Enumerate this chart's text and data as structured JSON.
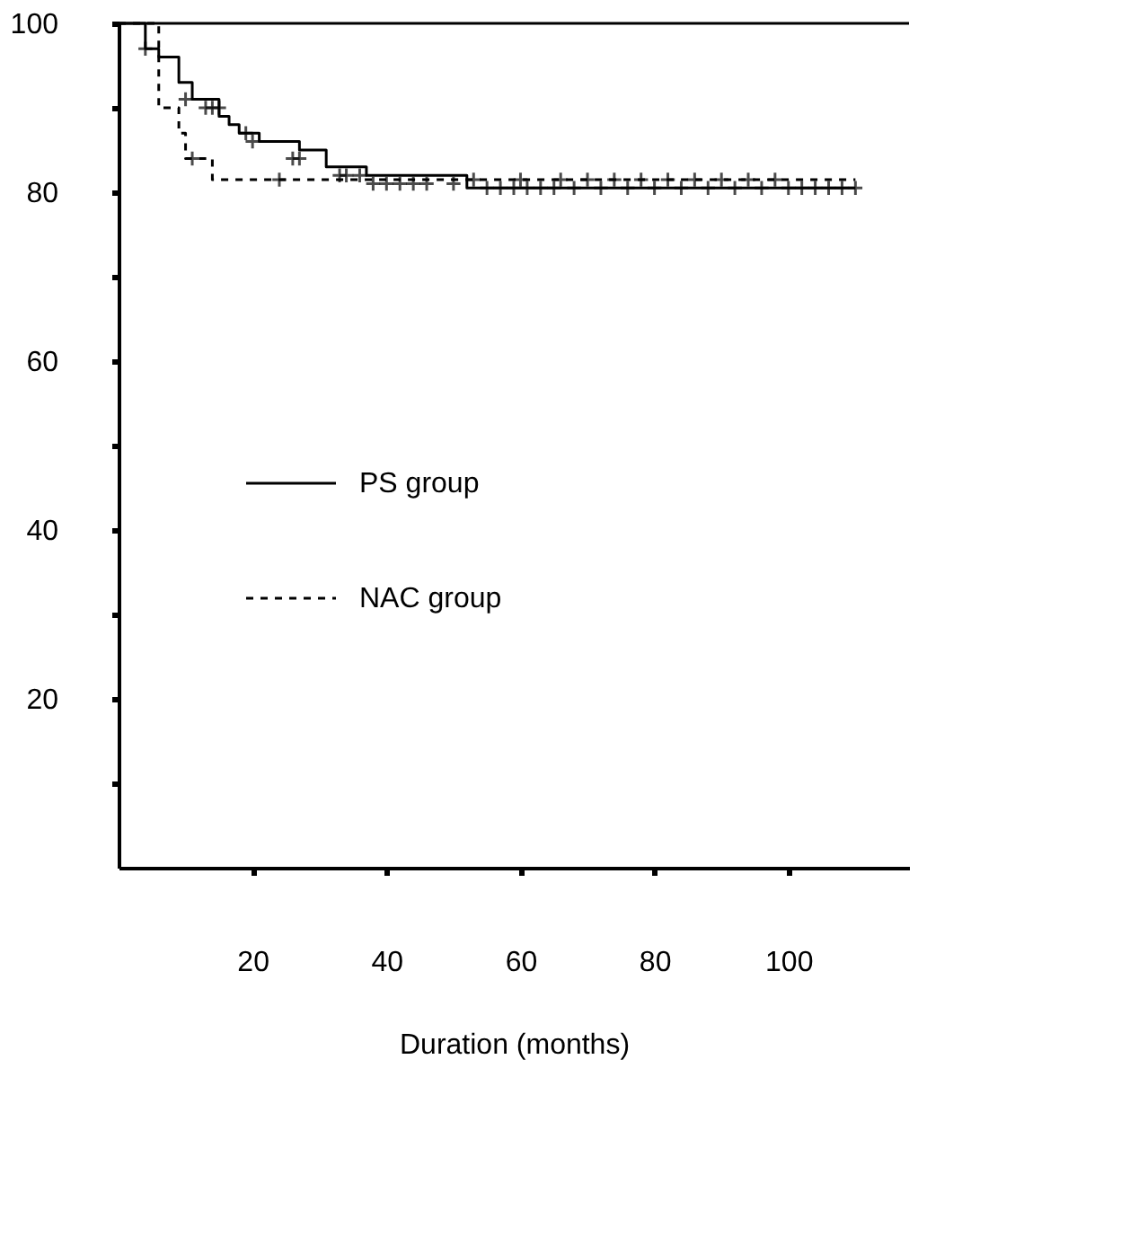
{
  "chart_data": {
    "type": "step",
    "xlabel": "Duration (months)",
    "xlim": [
      0,
      118
    ],
    "xticks": [
      20,
      40,
      60,
      80,
      100
    ],
    "ylim": [
      0,
      100
    ],
    "yticks": [
      {
        "value": 10,
        "label": null
      },
      20,
      {
        "value": 30,
        "label": null
      },
      40,
      {
        "value": 50,
        "label": null
      },
      60,
      {
        "value": 70,
        "label": null
      },
      80,
      {
        "value": 90,
        "label": null
      },
      100
    ],
    "grid": false,
    "legend": "left",
    "ref_lines": [
      {
        "axis": "y",
        "value": 100
      }
    ],
    "series": [
      {
        "name": "PS group",
        "color": "#000000",
        "line_style": "solid",
        "x": [
          0,
          4,
          6,
          9,
          11,
          15,
          16.5,
          18,
          21,
          27,
          31,
          37,
          52,
          110
        ],
        "values": [
          100,
          97,
          96,
          93,
          91,
          89,
          88,
          87,
          86,
          85,
          83,
          82,
          80.5,
          80.5
        ]
      },
      {
        "name": "NAC group",
        "color": "#000000",
        "line_style": "dashed",
        "x": [
          0,
          6,
          9,
          10,
          14,
          110
        ],
        "values": [
          100,
          90,
          87,
          84,
          81.5,
          81.5
        ]
      },
      {
        "type": "scatter",
        "marker": "cross",
        "color": "#000000",
        "x": [
          4,
          10,
          13,
          14,
          15,
          19,
          20,
          26,
          27,
          33,
          34,
          36,
          38,
          40,
          42,
          44,
          46,
          50,
          55,
          57,
          59,
          61,
          63,
          65,
          68,
          72,
          76,
          80,
          84,
          88,
          92,
          96,
          100,
          102,
          104,
          106,
          108,
          110
        ],
        "values": [
          97,
          91,
          90,
          90,
          90,
          87,
          86,
          84,
          84,
          82,
          82,
          82,
          81,
          81,
          81,
          81,
          81,
          81,
          80.5,
          80.5,
          80.5,
          80.5,
          80.5,
          80.5,
          80.5,
          80.5,
          80.5,
          80.5,
          80.5,
          80.5,
          80.5,
          80.5,
          80.5,
          80.5,
          80.5,
          80.5,
          80.5,
          80.5
        ]
      },
      {
        "type": "scatter",
        "marker": "cross",
        "color": "#000000",
        "x": [
          11,
          24,
          53,
          60,
          66,
          70,
          74,
          78,
          82,
          86,
          90,
          94,
          98
        ],
        "values": [
          84,
          81.5,
          81.5,
          81.5,
          81.5,
          81.5,
          81.5,
          81.5,
          81.5,
          81.5,
          81.5,
          81.5,
          81.5
        ]
      }
    ]
  }
}
